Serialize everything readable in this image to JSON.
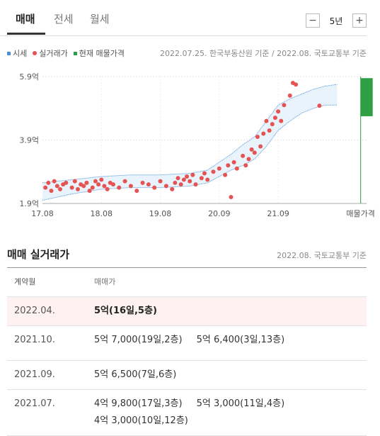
{
  "tabs": [
    {
      "label": "매매",
      "active": true
    },
    {
      "label": "전세",
      "active": false
    },
    {
      "label": "월세",
      "active": false
    }
  ],
  "period": {
    "minus": "−",
    "value": "5년",
    "plus": "+"
  },
  "legend": [
    {
      "label": "시세",
      "color": "#4a90d9",
      "shape": "square"
    },
    {
      "label": "실거래가",
      "color": "#e55353",
      "shape": "dot"
    },
    {
      "label": "현재 매물가격",
      "color": "#2ea043",
      "shape": "square"
    }
  ],
  "source_top": "2022.07.25. 한국부동산원 기준 / 2022.08. 국토교통부 기준",
  "chart_data": {
    "type": "scatter",
    "y_ticks": [
      "5.9억",
      "3.9억",
      "1.9억"
    ],
    "x_ticks": [
      "17.08",
      "18.08",
      "19.08",
      "20.09",
      "21.09",
      "매물가격"
    ],
    "ylim": [
      1.9,
      5.9
    ],
    "unit": "억",
    "series": [
      {
        "name": "시세",
        "type": "area",
        "x": [
          0,
          0.5,
          1,
          1.5,
          2,
          2.5,
          2.8,
          3,
          3.2,
          3.4,
          3.6,
          3.8,
          4,
          4.2,
          4.4,
          4.6,
          4.8,
          5.0
        ],
        "upper": [
          2.55,
          2.65,
          2.75,
          2.8,
          2.8,
          2.85,
          2.95,
          3.2,
          3.45,
          3.75,
          4.0,
          4.5,
          5.0,
          5.2,
          5.35,
          5.5,
          5.6,
          5.65
        ],
        "lower": [
          2.0,
          2.2,
          2.35,
          2.4,
          2.4,
          2.45,
          2.55,
          2.75,
          2.95,
          3.1,
          3.3,
          3.7,
          4.2,
          4.5,
          4.75,
          4.9,
          5.0,
          5.0
        ]
      },
      {
        "name": "실거래가",
        "type": "scatter",
        "x": [
          0.05,
          0.1,
          0.15,
          0.2,
          0.25,
          0.3,
          0.35,
          0.4,
          0.5,
          0.55,
          0.6,
          0.65,
          0.7,
          0.75,
          0.8,
          0.85,
          0.9,
          0.95,
          1.0,
          1.05,
          1.1,
          1.15,
          1.2,
          1.3,
          1.4,
          1.5,
          1.6,
          1.7,
          1.8,
          1.9,
          2.0,
          2.1,
          2.2,
          2.25,
          2.3,
          2.35,
          2.4,
          2.45,
          2.5,
          2.55,
          2.6,
          2.7,
          2.75,
          2.8,
          2.9,
          3.0,
          3.1,
          3.15,
          3.2,
          3.25,
          3.3,
          3.4,
          3.45,
          3.5,
          3.55,
          3.6,
          3.65,
          3.7,
          3.75,
          3.8,
          3.85,
          3.9,
          3.95,
          4.0,
          4.05,
          4.1,
          4.2,
          4.25,
          4.3,
          4.7
        ],
        "y": [
          2.4,
          2.55,
          2.3,
          2.6,
          2.45,
          2.35,
          2.5,
          2.55,
          2.4,
          2.6,
          2.35,
          2.5,
          2.45,
          2.55,
          2.3,
          2.4,
          2.6,
          2.5,
          2.65,
          2.45,
          2.35,
          2.55,
          2.5,
          2.4,
          2.6,
          2.45,
          2.3,
          2.55,
          2.5,
          2.4,
          2.6,
          2.45,
          2.35,
          2.55,
          2.7,
          2.5,
          2.65,
          2.75,
          2.6,
          2.8,
          2.5,
          2.7,
          2.85,
          2.65,
          2.9,
          3.0,
          2.8,
          3.1,
          2.1,
          3.2,
          3.0,
          3.4,
          3.1,
          3.3,
          3.6,
          3.5,
          4.0,
          3.7,
          4.1,
          4.5,
          4.2,
          4.4,
          4.6,
          4.8,
          4.5,
          5.0,
          5.3,
          5.7,
          5.65,
          4.98
        ]
      },
      {
        "name": "현재 매물가격",
        "type": "range",
        "x": [
          5.4
        ],
        "low": [
          4.65
        ],
        "high": [
          5.85
        ]
      }
    ]
  },
  "section_title": "매매 실거래가",
  "source_section": "2022.08. 국토교통부 기준",
  "table": {
    "headers": [
      "계약월",
      "매매가"
    ],
    "rows": [
      {
        "date": "2022.04.",
        "deals": [
          "5억(16일,5층)"
        ],
        "highlight": true
      },
      {
        "date": "2021.10.",
        "deals": [
          "5억 7,000(19일,2층)",
          "5억 6,400(3일,13층)"
        ],
        "highlight": false
      },
      {
        "date": "2021.09.",
        "deals": [
          "5억 6,500(7일,6층)"
        ],
        "highlight": false
      },
      {
        "date": "2021.07.",
        "deals": [
          "4억 9,800(17일,3층)",
          "5억 3,000(11일,4층)",
          "4억 3,000(10일,12층)"
        ],
        "highlight": false
      }
    ]
  }
}
